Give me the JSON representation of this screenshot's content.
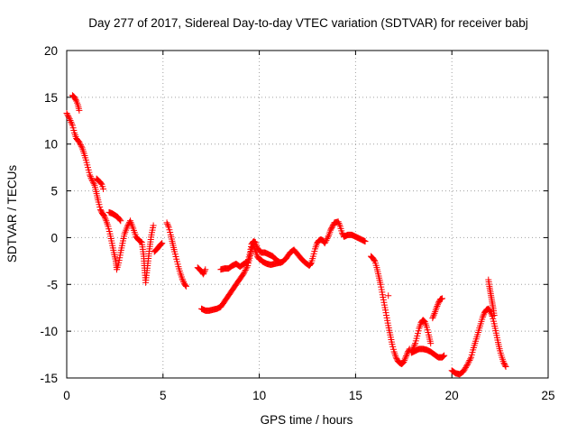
{
  "chart_data": {
    "type": "scatter",
    "title": "Day 277 of 2017, Sidereal Day-to-day VTEC variation (SDTVAR) for receiver babj",
    "xlabel": "GPS time / hours",
    "ylabel": "SDTVAR / TECUs",
    "xlim": [
      0,
      25
    ],
    "ylim": [
      -15,
      20
    ],
    "xticks": [
      0,
      5,
      10,
      15,
      20,
      25
    ],
    "yticks": [
      -15,
      -10,
      -5,
      0,
      5,
      10,
      15,
      20
    ],
    "xtick_labels": [
      "0",
      "5",
      "10",
      "15",
      "20",
      "25"
    ],
    "ytick_labels": [
      "-15",
      "-10",
      "-5",
      "0",
      "5",
      "10",
      "15",
      "20"
    ],
    "grid": true,
    "marker": "+",
    "color": "#ff0000",
    "series": [
      {
        "name": "SDTVAR",
        "segments": [
          [
            [
              0.0,
              13.3
            ],
            [
              0.15,
              12.7
            ],
            [
              0.3,
              12.0
            ],
            [
              0.4,
              11.2
            ],
            [
              0.5,
              10.6
            ],
            [
              0.65,
              10.2
            ],
            [
              0.8,
              9.6
            ],
            [
              0.9,
              9.0
            ],
            [
              1.0,
              8.3
            ],
            [
              1.1,
              7.5
            ],
            [
              1.2,
              6.7
            ],
            [
              1.3,
              6.2
            ],
            [
              1.45,
              5.6
            ],
            [
              1.55,
              4.7
            ],
            [
              1.65,
              3.8
            ],
            [
              1.75,
              3.0
            ],
            [
              1.85,
              2.6
            ],
            [
              1.95,
              2.3
            ],
            [
              2.05,
              1.8
            ],
            [
              2.15,
              1.2
            ],
            [
              2.25,
              0.4
            ],
            [
              2.35,
              -0.6
            ],
            [
              2.45,
              -1.6
            ],
            [
              2.55,
              -2.5
            ],
            [
              2.6,
              -3.4
            ],
            [
              2.7,
              -2.7
            ],
            [
              2.8,
              -1.6
            ],
            [
              2.9,
              -0.6
            ],
            [
              3.0,
              0.4
            ],
            [
              3.15,
              1.2
            ],
            [
              3.3,
              1.8
            ],
            [
              3.45,
              1.0
            ],
            [
              3.6,
              0.1
            ],
            [
              3.75,
              -0.3
            ],
            [
              3.9,
              -0.5
            ],
            [
              4.0,
              -2.0
            ],
            [
              4.05,
              -3.5
            ],
            [
              4.1,
              -4.8
            ],
            [
              4.2,
              -3.0
            ],
            [
              4.3,
              -1.2
            ],
            [
              4.4,
              0.3
            ],
            [
              4.5,
              1.3
            ]
          ],
          [
            [
              0.3,
              15.2
            ],
            [
              0.4,
              15.0
            ],
            [
              0.5,
              14.6
            ],
            [
              0.58,
              14.2
            ],
            [
              0.65,
              13.6
            ]
          ],
          [
            [
              1.55,
              6.3
            ],
            [
              1.65,
              6.1
            ],
            [
              1.75,
              5.9
            ],
            [
              1.82,
              5.7
            ],
            [
              1.9,
              5.2
            ]
          ],
          [
            [
              2.2,
              2.7
            ],
            [
              2.35,
              2.6
            ],
            [
              2.5,
              2.4
            ],
            [
              2.65,
              2.2
            ],
            [
              2.8,
              1.8
            ]
          ],
          [
            [
              4.55,
              -1.5
            ],
            [
              4.7,
              -1.2
            ],
            [
              4.85,
              -0.8
            ],
            [
              4.95,
              -0.6
            ]
          ],
          [
            [
              5.2,
              1.6
            ],
            [
              5.3,
              1.1
            ],
            [
              5.4,
              0.3
            ],
            [
              5.5,
              -0.6
            ],
            [
              5.6,
              -1.5
            ],
            [
              5.7,
              -2.3
            ],
            [
              5.8,
              -3.1
            ],
            [
              5.9,
              -3.8
            ],
            [
              6.0,
              -4.4
            ],
            [
              6.1,
              -4.9
            ],
            [
              6.2,
              -5.2
            ]
          ],
          [
            [
              6.8,
              -3.2
            ],
            [
              7.0,
              -3.6
            ],
            [
              7.1,
              -3.9
            ],
            [
              7.2,
              -3.4
            ]
          ],
          [
            [
              7.0,
              -7.6
            ],
            [
              7.2,
              -7.8
            ],
            [
              7.4,
              -7.8
            ],
            [
              7.6,
              -7.7
            ],
            [
              7.8,
              -7.6
            ],
            [
              8.0,
              -7.4
            ],
            [
              8.2,
              -6.8
            ],
            [
              8.4,
              -6.2
            ],
            [
              8.6,
              -5.6
            ],
            [
              8.8,
              -5.0
            ],
            [
              9.0,
              -4.4
            ],
            [
              9.2,
              -3.8
            ],
            [
              9.4,
              -3.0
            ],
            [
              9.5,
              -2.2
            ],
            [
              9.6,
              -1.2
            ],
            [
              9.7,
              -0.8
            ],
            [
              9.8,
              -1.4
            ],
            [
              9.9,
              -2.0
            ],
            [
              10.0,
              -2.3
            ],
            [
              10.1,
              -2.4
            ],
            [
              10.2,
              -2.6
            ],
            [
              10.4,
              -2.8
            ],
            [
              10.6,
              -2.9
            ],
            [
              10.8,
              -2.8
            ],
            [
              11.0,
              -2.7
            ],
            [
              11.2,
              -2.6
            ],
            [
              11.4,
              -2.2
            ],
            [
              11.6,
              -1.6
            ],
            [
              11.8,
              -1.3
            ],
            [
              12.0,
              -1.8
            ],
            [
              12.2,
              -2.3
            ],
            [
              12.4,
              -2.7
            ],
            [
              12.6,
              -3.0
            ],
            [
              12.7,
              -2.7
            ],
            [
              12.8,
              -2.0
            ],
            [
              12.9,
              -1.2
            ],
            [
              13.0,
              -0.6
            ],
            [
              13.1,
              -0.3
            ],
            [
              13.2,
              -0.2
            ],
            [
              13.3,
              -0.3
            ],
            [
              13.4,
              -0.6
            ],
            [
              13.6,
              0.2
            ],
            [
              13.7,
              0.8
            ],
            [
              13.8,
              1.2
            ],
            [
              13.9,
              1.6
            ],
            [
              14.1,
              1.7
            ],
            [
              14.2,
              1.2
            ],
            [
              14.3,
              0.5
            ],
            [
              14.4,
              0.1
            ],
            [
              14.5,
              0.2
            ],
            [
              14.6,
              0.3
            ],
            [
              14.8,
              0.3
            ],
            [
              15.0,
              0.1
            ],
            [
              15.2,
              -0.1
            ],
            [
              15.4,
              -0.3
            ],
            [
              15.5,
              -0.4
            ]
          ],
          [
            [
              8.0,
              -3.4
            ],
            [
              8.2,
              -3.3
            ],
            [
              8.4,
              -3.3
            ],
            [
              8.6,
              -3.0
            ],
            [
              8.8,
              -2.8
            ],
            [
              9.0,
              -3.1
            ],
            [
              9.2,
              -2.8
            ],
            [
              9.4,
              -2.6
            ],
            [
              9.5,
              -1.8
            ],
            [
              9.6,
              -0.7
            ],
            [
              9.7,
              -0.4
            ],
            [
              9.8,
              -0.5
            ],
            [
              9.9,
              -1.1
            ],
            [
              10.1,
              -1.6
            ],
            [
              10.3,
              -1.6
            ],
            [
              10.5,
              -1.8
            ],
            [
              10.7,
              -2.0
            ],
            [
              10.9,
              -2.4
            ],
            [
              11.1,
              -2.7
            ]
          ],
          [
            [
              15.8,
              -2.0
            ],
            [
              15.9,
              -2.2
            ],
            [
              16.0,
              -2.5
            ],
            [
              16.1,
              -3.2
            ],
            [
              16.2,
              -4.1
            ],
            [
              16.3,
              -5.0
            ],
            [
              16.4,
              -6.1
            ],
            [
              16.5,
              -7.2
            ],
            [
              16.6,
              -8.3
            ],
            [
              16.7,
              -9.4
            ],
            [
              16.8,
              -10.4
            ],
            [
              16.9,
              -11.4
            ],
            [
              17.0,
              -12.2
            ],
            [
              17.1,
              -12.8
            ],
            [
              17.2,
              -13.2
            ],
            [
              17.3,
              -13.4
            ],
            [
              17.4,
              -13.5
            ],
            [
              17.5,
              -13.3
            ],
            [
              17.6,
              -12.8
            ],
            [
              17.7,
              -12.3
            ],
            [
              17.8,
              -11.9
            ]
          ],
          [
            [
              16.7,
              -6.2
            ]
          ],
          [
            [
              17.9,
              -12.2
            ],
            [
              18.0,
              -11.8
            ],
            [
              18.1,
              -11.3
            ],
            [
              18.2,
              -10.5
            ],
            [
              18.3,
              -9.7
            ],
            [
              18.4,
              -9.1
            ],
            [
              18.5,
              -8.8
            ],
            [
              18.6,
              -9.0
            ],
            [
              18.7,
              -9.6
            ],
            [
              18.8,
              -10.4
            ],
            [
              18.9,
              -11.3
            ]
          ],
          [
            [
              17.9,
              -12.3
            ],
            [
              18.1,
              -12.1
            ],
            [
              18.3,
              -11.9
            ],
            [
              18.5,
              -11.9
            ],
            [
              18.7,
              -12.0
            ],
            [
              18.9,
              -12.2
            ],
            [
              19.1,
              -12.5
            ],
            [
              19.3,
              -12.8
            ],
            [
              19.5,
              -12.8
            ],
            [
              19.6,
              -12.6
            ]
          ],
          [
            [
              19.0,
              -8.6
            ],
            [
              19.1,
              -8.1
            ],
            [
              19.2,
              -7.5
            ],
            [
              19.3,
              -7.0
            ],
            [
              19.4,
              -6.6
            ],
            [
              19.5,
              -6.5
            ]
          ],
          [
            [
              20.0,
              -14.2
            ],
            [
              20.2,
              -14.5
            ],
            [
              20.4,
              -14.6
            ],
            [
              20.6,
              -14.3
            ],
            [
              20.8,
              -13.6
            ],
            [
              21.0,
              -12.8
            ],
            [
              21.1,
              -12.0
            ],
            [
              21.2,
              -11.3
            ],
            [
              21.3,
              -10.6
            ],
            [
              21.4,
              -9.9
            ],
            [
              21.5,
              -9.2
            ],
            [
              21.6,
              -8.5
            ],
            [
              21.7,
              -8.0
            ],
            [
              21.8,
              -7.7
            ],
            [
              21.9,
              -7.6
            ],
            [
              22.0,
              -7.9
            ],
            [
              22.1,
              -8.4
            ],
            [
              22.2,
              -9.2
            ],
            [
              22.3,
              -10.2
            ],
            [
              22.4,
              -11.2
            ],
            [
              22.5,
              -12.1
            ],
            [
              22.6,
              -12.8
            ],
            [
              22.7,
              -13.4
            ],
            [
              22.8,
              -13.8
            ]
          ],
          [
            [
              21.9,
              -4.5
            ],
            [
              21.95,
              -5.2
            ],
            [
              22.0,
              -5.8
            ],
            [
              22.05,
              -6.4
            ],
            [
              22.1,
              -7.0
            ],
            [
              22.15,
              -7.6
            ],
            [
              22.2,
              -8.3
            ]
          ]
        ]
      }
    ]
  }
}
